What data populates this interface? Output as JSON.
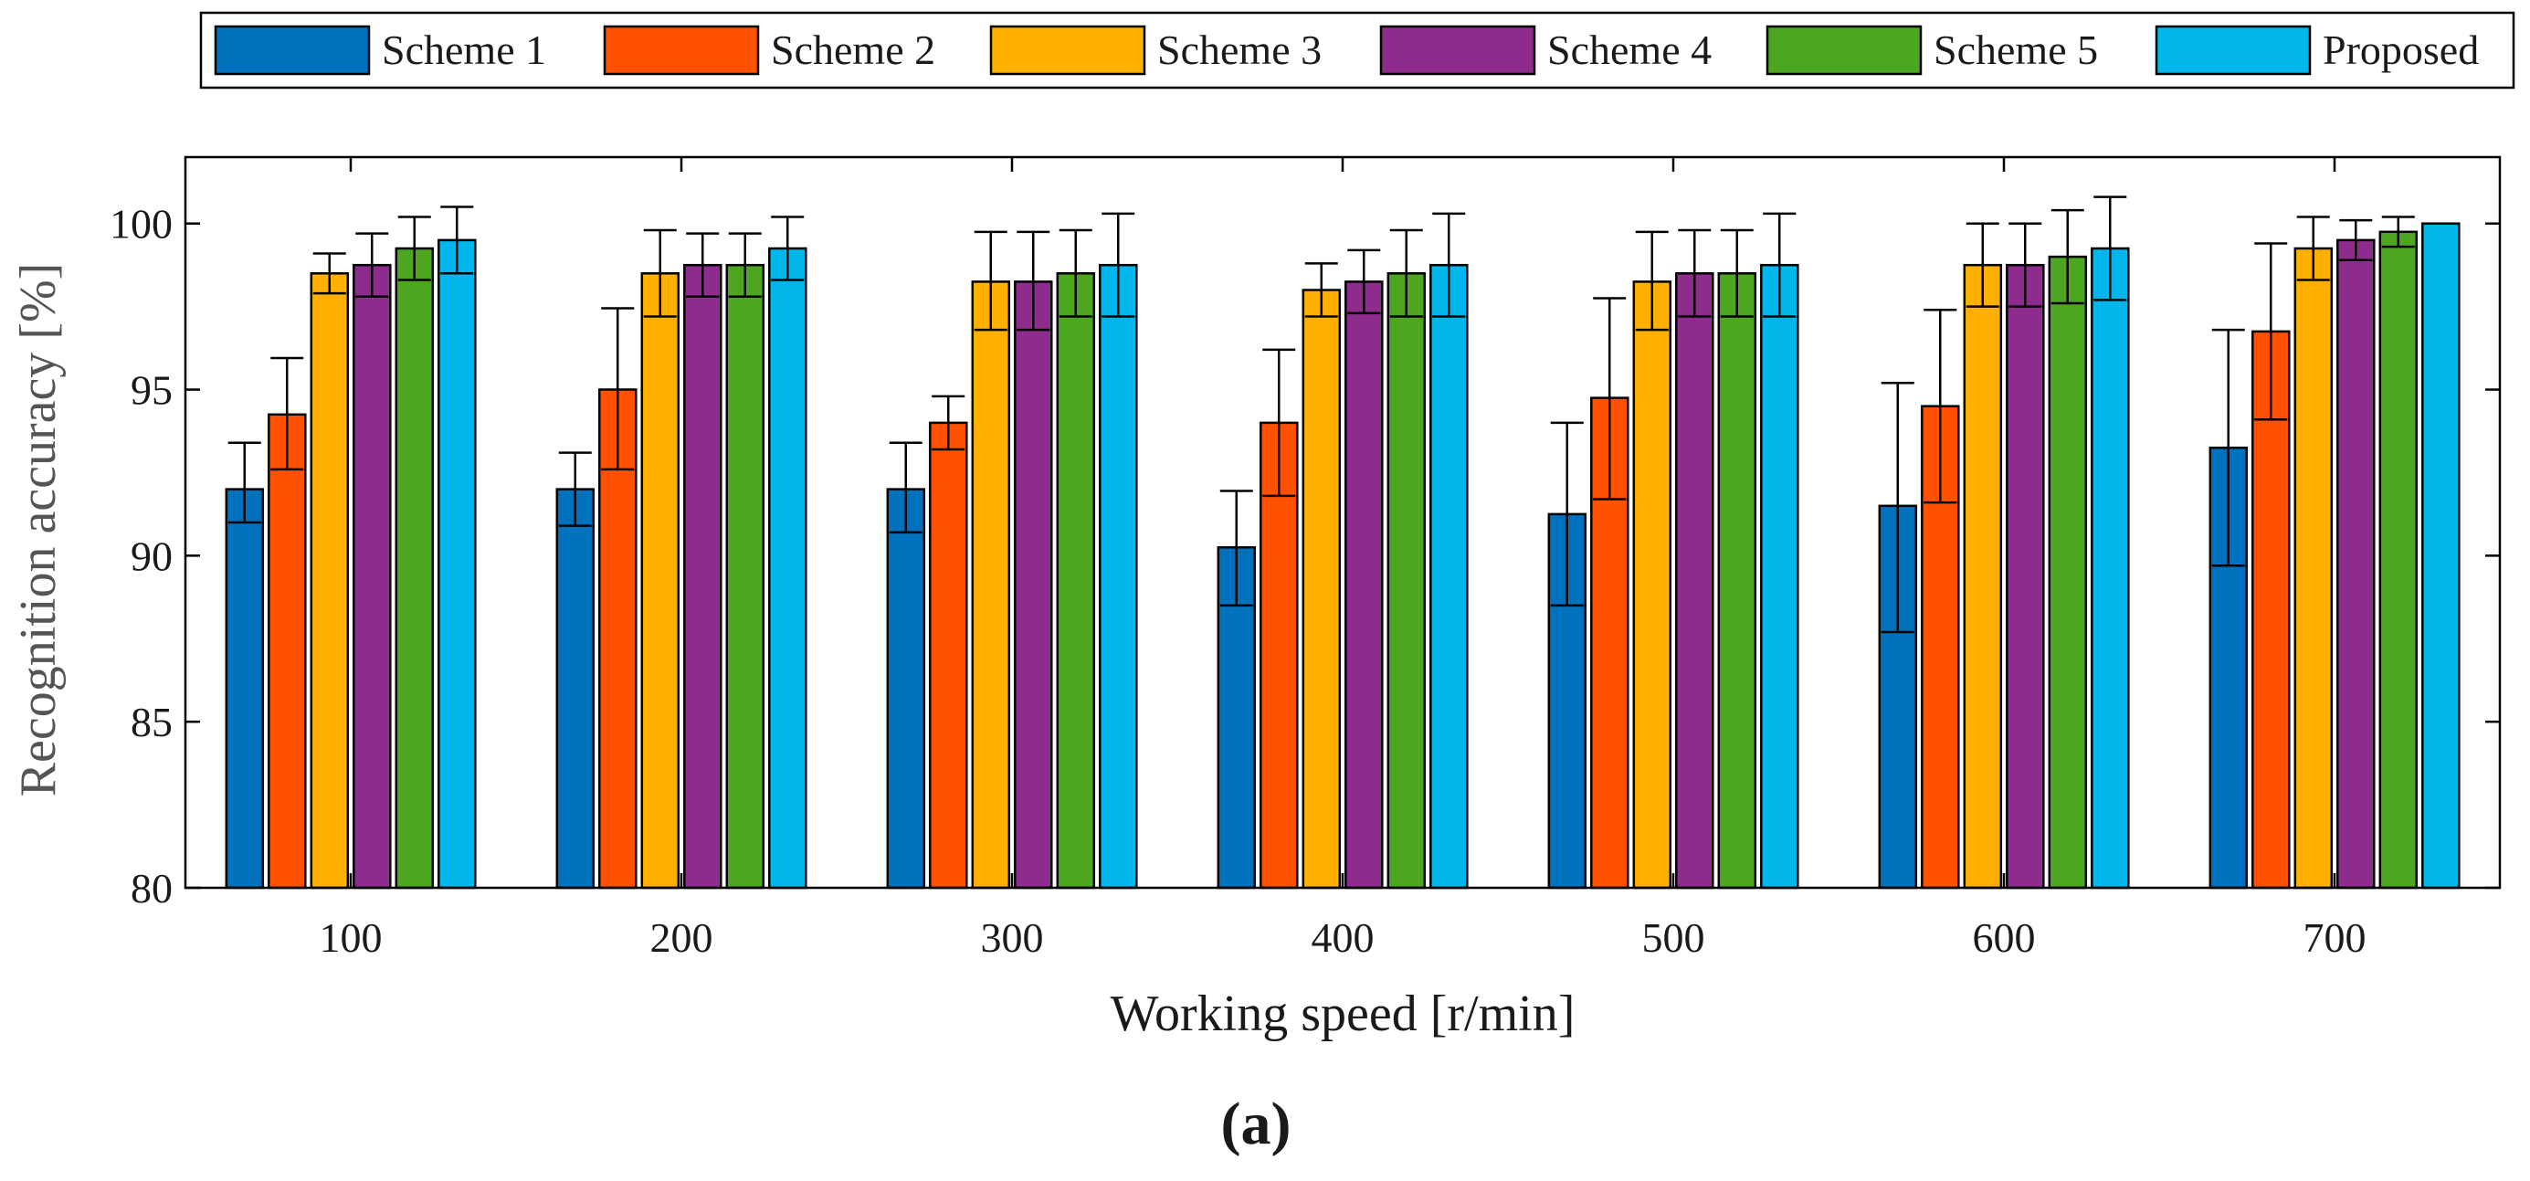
{
  "chart_data": {
    "type": "bar",
    "title": "",
    "caption": "(a)",
    "xlabel": "Working speed [r/min]",
    "ylabel": "Recognition accuracy [%]",
    "ylim": [
      80,
      102
    ],
    "yticks": [
      80,
      85,
      90,
      95,
      100
    ],
    "grid": false,
    "legend_position": "top",
    "categories": [
      "100",
      "200",
      "300",
      "400",
      "500",
      "600",
      "700"
    ],
    "series": [
      {
        "name": "Scheme 1",
        "color": "#0072BD",
        "values": [
          92.0,
          92.0,
          92.0,
          90.25,
          91.25,
          91.5,
          93.25
        ],
        "err_low": [
          91.0,
          90.9,
          90.7,
          88.5,
          88.5,
          87.7,
          89.7
        ],
        "err_high": [
          93.4,
          93.1,
          93.4,
          91.95,
          94.0,
          95.2,
          96.8
        ]
      },
      {
        "name": "Scheme 2",
        "color": "#FF5100",
        "values": [
          94.25,
          95.0,
          94.0,
          94.0,
          94.75,
          94.5,
          96.75
        ],
        "err_low": [
          92.6,
          92.6,
          93.2,
          91.8,
          91.7,
          91.6,
          94.1
        ],
        "err_high": [
          95.95,
          97.45,
          94.8,
          96.2,
          97.75,
          97.4,
          99.4
        ]
      },
      {
        "name": "Scheme 3",
        "color": "#FFB000",
        "values": [
          98.5,
          98.5,
          98.25,
          98.0,
          98.25,
          98.75,
          99.25
        ],
        "err_low": [
          97.9,
          97.2,
          96.8,
          97.2,
          96.8,
          97.5,
          98.3
        ],
        "err_high": [
          99.1,
          99.8,
          99.75,
          98.8,
          99.75,
          100.0,
          100.2
        ]
      },
      {
        "name": "Scheme 4",
        "color": "#8E2C8E",
        "values": [
          98.75,
          98.75,
          98.25,
          98.25,
          98.5,
          98.75,
          99.5
        ],
        "err_low": [
          97.8,
          97.8,
          96.8,
          97.3,
          97.2,
          97.5,
          98.9
        ],
        "err_high": [
          99.7,
          99.7,
          99.75,
          99.2,
          99.8,
          100.0,
          100.1
        ]
      },
      {
        "name": "Scheme 5",
        "color": "#4DA620",
        "values": [
          99.25,
          98.75,
          98.5,
          98.5,
          98.5,
          99.0,
          99.75
        ],
        "err_low": [
          98.3,
          97.8,
          97.2,
          97.2,
          97.2,
          97.6,
          99.3
        ],
        "err_high": [
          100.2,
          99.7,
          99.8,
          99.8,
          99.8,
          100.4,
          100.2
        ]
      },
      {
        "name": "Proposed",
        "color": "#00B6EB",
        "values": [
          99.5,
          99.25,
          98.75,
          98.75,
          98.75,
          99.25,
          100.0
        ],
        "err_low": [
          98.5,
          98.3,
          97.2,
          97.2,
          97.2,
          97.7,
          100.0
        ],
        "err_high": [
          100.5,
          100.2,
          100.3,
          100.3,
          100.3,
          100.8,
          100.0
        ]
      }
    ]
  }
}
